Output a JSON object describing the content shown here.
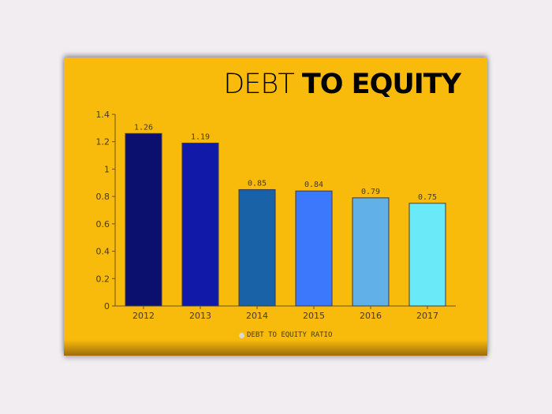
{
  "chart_data": {
    "type": "bar",
    "title_light": "DEBT",
    "title_bold": "TO EQUITY",
    "categories": [
      "2012",
      "2013",
      "2014",
      "2015",
      "2016",
      "2017"
    ],
    "series": [
      {
        "name": "DEBT TO EQUITY RATIO",
        "values": [
          1.26,
          1.19,
          0.85,
          0.84,
          0.79,
          0.75
        ]
      }
    ],
    "data_labels": [
      "1.26",
      "1.19",
      "0.85",
      "0.84",
      "0.79",
      "0.75"
    ],
    "bar_colors": [
      "#0b0f6e",
      "#1119a8",
      "#1962a8",
      "#3c78fb",
      "#62b0e8",
      "#6aeaf8"
    ],
    "yticks": [
      "0",
      "0.2",
      "0.4",
      "0.6",
      "0.8",
      "1",
      "1.2",
      "1.4"
    ],
    "ylim": [
      0,
      1.4
    ],
    "grid": false,
    "legend": "bottom",
    "background": "#f8ba0b"
  }
}
